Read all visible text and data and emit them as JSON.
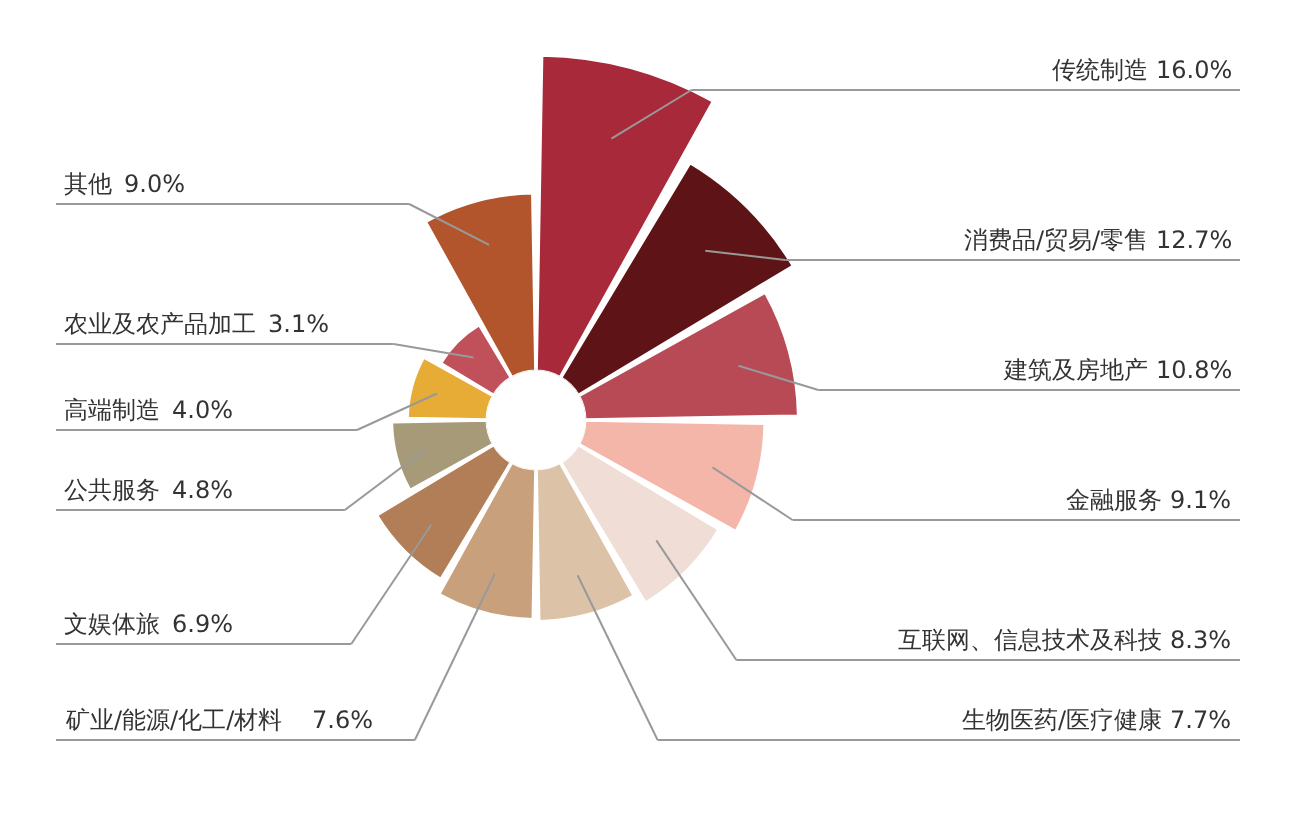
{
  "chart_data": {
    "type": "other",
    "categories": [
      "传统制造",
      "消费品/贸易/零售",
      "建筑及房地产",
      "金融服务",
      "互联网、信息技术及科技",
      "生物医药/医疗健康",
      "矿业/能源/化工/材料",
      "文娱体旅",
      "公共服务",
      "高端制造",
      "农业及农产品加工",
      "其他"
    ],
    "values": [
      16.0,
      12.7,
      10.8,
      9.1,
      8.3,
      7.7,
      7.6,
      6.9,
      4.8,
      4.0,
      3.1,
      9.0
    ],
    "value_labels": [
      "16.0%",
      "12.7%",
      "10.8%",
      "9.1%",
      "8.3%",
      "7.7%",
      "7.6%",
      "6.9%",
      "4.8%",
      "4.0%",
      "3.1%",
      "9.0%"
    ],
    "colors": [
      "#a8293a",
      "#5e1416",
      "#b84a55",
      "#f4b6a9",
      "#f0ddd6",
      "#dcc2a7",
      "#c9a07c",
      "#b27e58",
      "#a69a78",
      "#e6ac35",
      "#c0505a",
      "#b2552c"
    ],
    "legend": false
  }
}
